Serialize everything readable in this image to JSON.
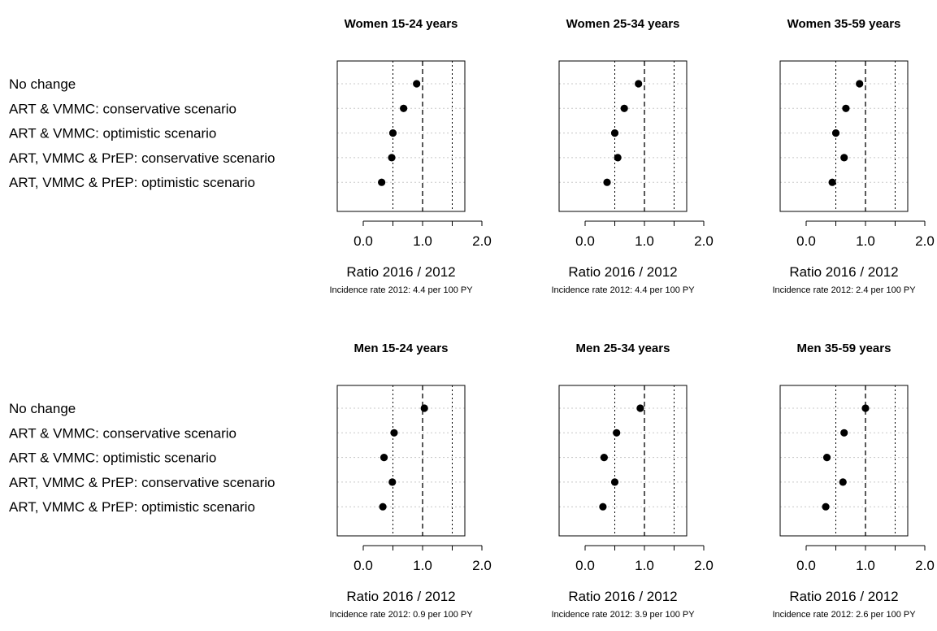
{
  "chart_data": {
    "type": "scatter",
    "categories": [
      "No change",
      "ART & VMMC: conservative scenario",
      "ART & VMMC: optimistic scenario",
      "ART, VMMC & PrEP: conservative scenario",
      "ART, VMMC & PrEP: optimistic scenario"
    ],
    "xlim": [
      0.0,
      2.0
    ],
    "xticks": [
      "0.0",
      "1.0",
      "2.0"
    ],
    "reference_line": 1.0,
    "grid": "dotted",
    "panels": [
      {
        "title": "Women 15-24 years",
        "xlabel": "Ratio 2016 / 2012",
        "note": "Incidence rate 2012: 4.4 per 100 PY",
        "values": [
          0.9,
          0.68,
          0.5,
          0.48,
          0.31
        ]
      },
      {
        "title": "Women 25-34 years",
        "xlabel": "Ratio 2016 / 2012",
        "note": "Incidence rate 2012: 4.4 per 100 PY",
        "values": [
          0.9,
          0.66,
          0.5,
          0.55,
          0.37
        ]
      },
      {
        "title": "Women 35-59 years",
        "xlabel": "Ratio 2016 / 2012",
        "note": "Incidence rate 2012: 2.4 per 100 PY",
        "values": [
          0.9,
          0.67,
          0.5,
          0.64,
          0.44
        ]
      },
      {
        "title": "Men 15-24 years",
        "xlabel": "Ratio 2016 / 2012",
        "note": "Incidence rate 2012: 0.9 per 100 PY",
        "values": [
          1.03,
          0.52,
          0.35,
          0.49,
          0.33
        ]
      },
      {
        "title": "Men 25-34 years",
        "xlabel": "Ratio 2016 / 2012",
        "note": "Incidence rate 2012: 3.9 per 100 PY",
        "values": [
          0.93,
          0.53,
          0.32,
          0.5,
          0.3
        ]
      },
      {
        "title": "Men 35-59 years",
        "xlabel": "Ratio 2016 / 2012",
        "note": "Incidence rate 2012: 2.6 per 100 PY",
        "values": [
          1.0,
          0.64,
          0.35,
          0.62,
          0.33
        ]
      }
    ]
  }
}
